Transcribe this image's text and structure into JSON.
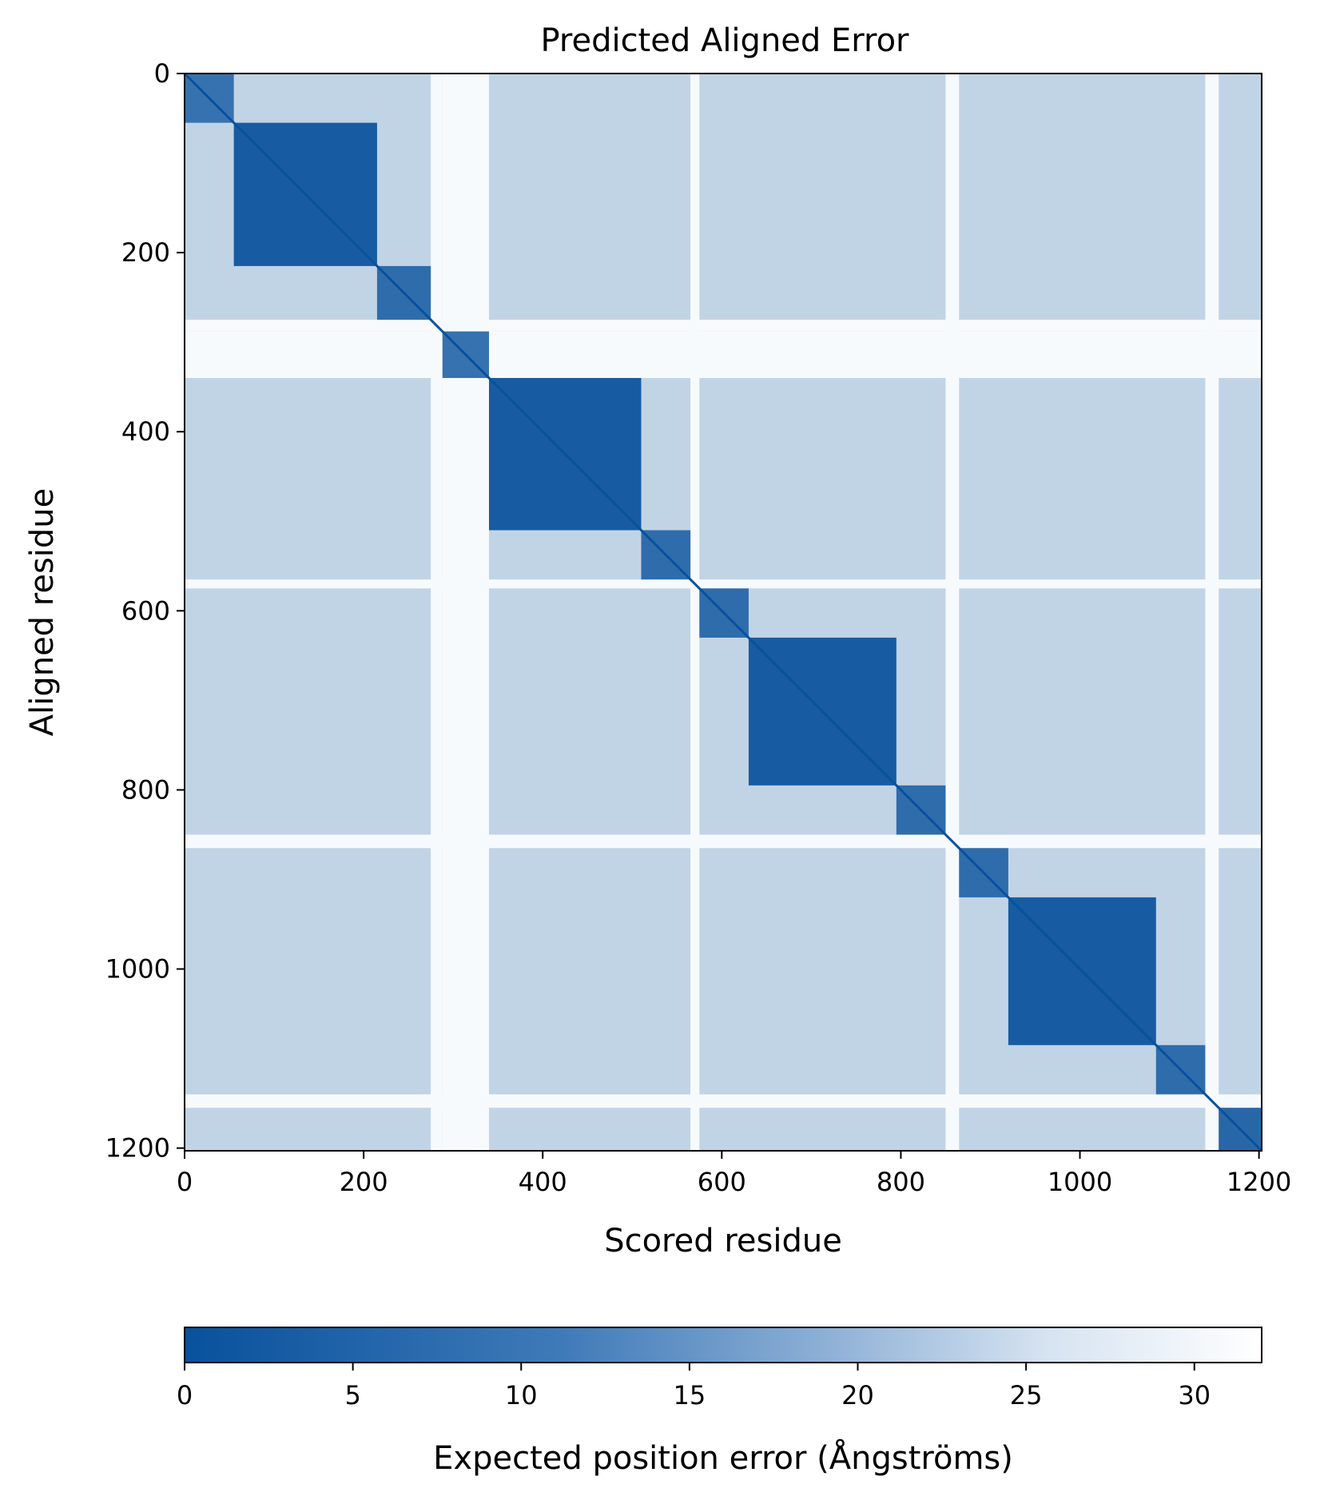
{
  "chart_data": {
    "type": "heatmap",
    "title": "Predicted Aligned Error",
    "xlabel": "Scored residue",
    "ylabel": "Aligned residue",
    "xlim": [
      0,
      1203
    ],
    "ylim": [
      1203,
      0
    ],
    "xticks": [
      0,
      200,
      400,
      600,
      800,
      1000,
      1200
    ],
    "yticks": [
      0,
      200,
      400,
      600,
      800,
      1000,
      1200
    ],
    "colormap": [
      "#08519c",
      "#ffffff"
    ],
    "colorbar": {
      "label": "Expected position error (Ångströms)",
      "range": [
        0,
        32
      ],
      "ticks": [
        0,
        5,
        10,
        15,
        20,
        25,
        30
      ]
    },
    "domains": [
      {
        "start": 0,
        "end": 55,
        "pae": 6
      },
      {
        "start": 55,
        "end": 215,
        "pae": 2
      },
      {
        "start": 215,
        "end": 275,
        "pae": 5
      },
      {
        "start": 288,
        "end": 340,
        "pae": 6
      },
      {
        "start": 340,
        "end": 510,
        "pae": 2
      },
      {
        "start": 510,
        "end": 565,
        "pae": 5
      },
      {
        "start": 575,
        "end": 630,
        "pae": 5
      },
      {
        "start": 630,
        "end": 795,
        "pae": 2
      },
      {
        "start": 795,
        "end": 850,
        "pae": 5
      },
      {
        "start": 865,
        "end": 920,
        "pae": 5
      },
      {
        "start": 920,
        "end": 1085,
        "pae": 2
      },
      {
        "start": 1085,
        "end": 1140,
        "pae": 5
      },
      {
        "start": 1155,
        "end": 1203,
        "pae": 4
      }
    ],
    "background_pae": 24,
    "flexible_pae": 31,
    "flexible_regions": [
      [
        275,
        288
      ],
      [
        288,
        340
      ],
      [
        565,
        575
      ],
      [
        850,
        865
      ],
      [
        1140,
        1155
      ]
    ]
  }
}
